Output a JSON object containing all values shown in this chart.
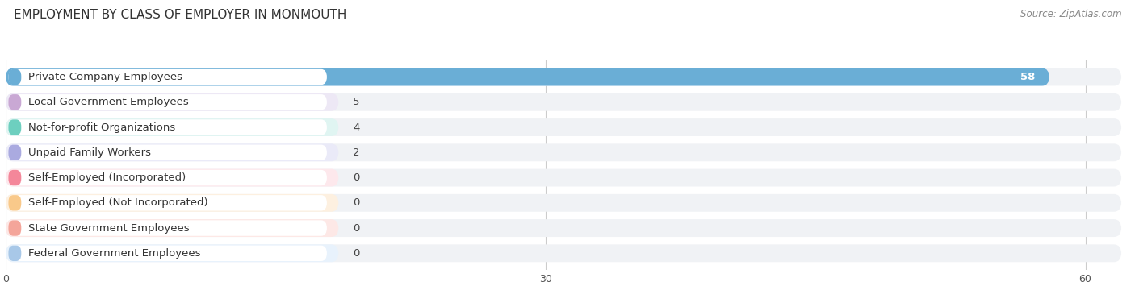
{
  "title": "EMPLOYMENT BY CLASS OF EMPLOYER IN MONMOUTH",
  "source": "Source: ZipAtlas.com",
  "categories": [
    "Private Company Employees",
    "Local Government Employees",
    "Not-for-profit Organizations",
    "Unpaid Family Workers",
    "Self-Employed (Incorporated)",
    "Self-Employed (Not Incorporated)",
    "State Government Employees",
    "Federal Government Employees"
  ],
  "values": [
    58,
    5,
    4,
    2,
    0,
    0,
    0,
    0
  ],
  "bar_colors": [
    "#6aaed6",
    "#c9a8d4",
    "#6dcfbf",
    "#aaaae0",
    "#f4879a",
    "#f9c98a",
    "#f4a59a",
    "#a8c8e8"
  ],
  "bar_bg_colors": [
    "#ddeeff",
    "#ede8f5",
    "#e0f5f2",
    "#eaeaf8",
    "#fde8ec",
    "#fdf0e0",
    "#fde8e6",
    "#e8f2fc"
  ],
  "xlim_max": 62,
  "xticks": [
    0,
    30,
    60
  ],
  "title_fontsize": 11,
  "source_fontsize": 8.5,
  "label_fontsize": 9.5,
  "value_fontsize": 9.5,
  "row_bg_color": "#f0f2f5",
  "label_bg_color": "#ffffff"
}
